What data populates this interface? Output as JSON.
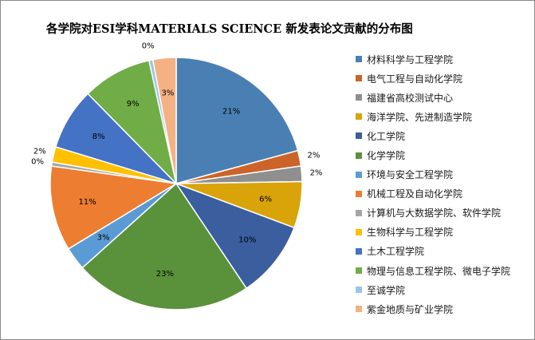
{
  "chart_data": {
    "type": "pie",
    "title": "各学院对ESI学科MATERIALS SCIENCE 新发表论文贡献的分布图",
    "legend_position": "right",
    "slices": [
      {
        "label": "材料科学与工程学院",
        "value": 21,
        "value_label": "21%",
        "color": "#4a7fb3"
      },
      {
        "label": "电气工程与自动化学院",
        "value": 2,
        "value_label": "2%",
        "color": "#cc6328"
      },
      {
        "label": "福建省高校测试中心",
        "value": 2,
        "value_label": "2%",
        "color": "#8f8f8f"
      },
      {
        "label": "海洋学院、先进制造学院",
        "value": 6,
        "value_label": "6%",
        "color": "#d9a30a"
      },
      {
        "label": "化工学院",
        "value": 10,
        "value_label": "10%",
        "color": "#3a5e9e"
      },
      {
        "label": "化学学院",
        "value": 23,
        "value_label": "23%",
        "color": "#5a913b"
      },
      {
        "label": "环境与安全工程学院",
        "value": 3,
        "value_label": "3%",
        "color": "#5b9bd5"
      },
      {
        "label": "机械工程及自动化学院",
        "value": 11,
        "value_label": "11%",
        "color": "#ed7d31"
      },
      {
        "label": "计算机与大数据学院、软件学院",
        "value": 0.5,
        "value_label": "0%",
        "color": "#a5a5a5"
      },
      {
        "label": "生物科学与工程学院",
        "value": 2,
        "value_label": "2%",
        "color": "#ffc000"
      },
      {
        "label": "土木工程学院",
        "value": 8,
        "value_label": "8%",
        "color": "#4472c4"
      },
      {
        "label": "物理与信息工程学院、微电子学院",
        "value": 9,
        "value_label": "9%",
        "color": "#70ad47"
      },
      {
        "label": "至诚学院",
        "value": 0.5,
        "value_label": "0%",
        "color": "#9dc3e6"
      },
      {
        "label": "紫金地质与矿业学院",
        "value": 3,
        "value_label": "3%",
        "color": "#f4b183"
      }
    ]
  }
}
